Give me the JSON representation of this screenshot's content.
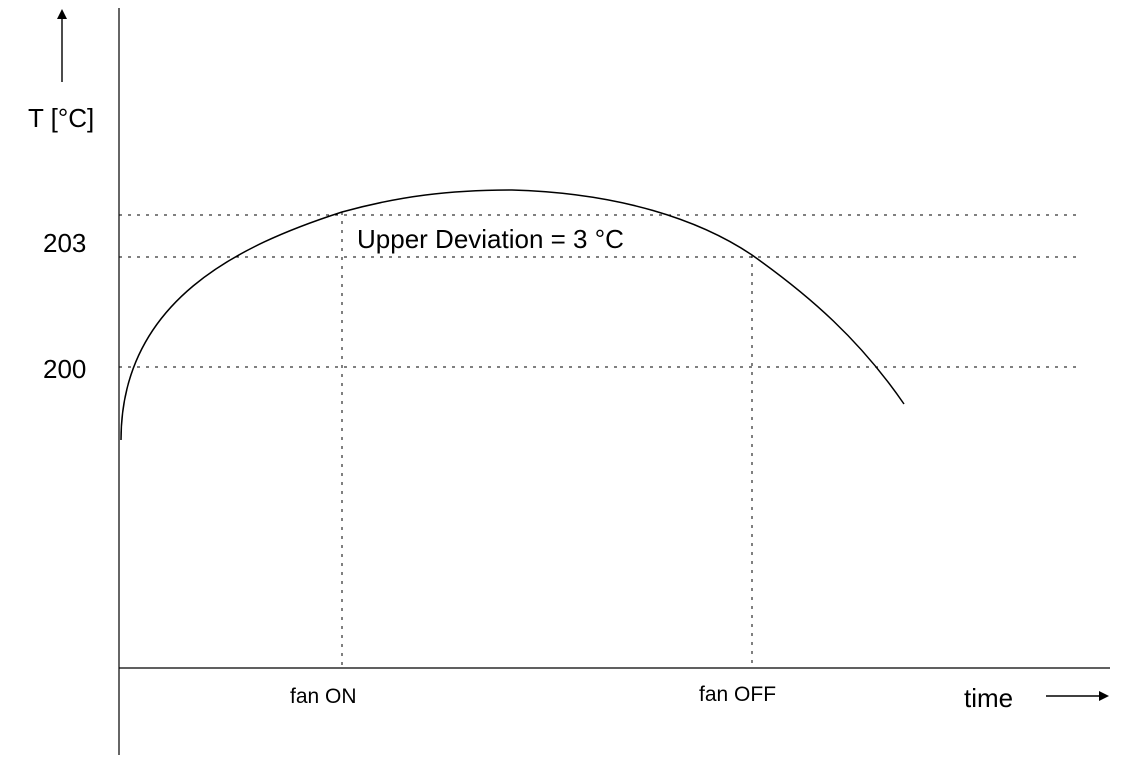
{
  "diagram": {
    "y_axis_label": "T [°C]",
    "x_axis_label": "time",
    "y_ticks": [
      {
        "label": "203",
        "value": 203
      },
      {
        "label": "200",
        "value": 200
      }
    ],
    "x_markers": [
      {
        "label": "fan ON"
      },
      {
        "label": "fan OFF"
      }
    ],
    "annotation": "Upper Deviation = 3 °C",
    "curve_description": "temperature rises above 200 °C, peaks above the upper deviation band, then falls"
  }
}
